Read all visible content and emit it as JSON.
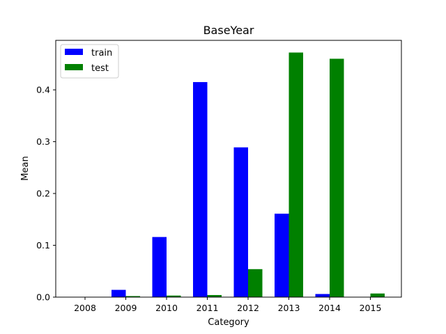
{
  "chart_data": {
    "type": "bar",
    "title": "BaseYear",
    "xlabel": "Category",
    "ylabel": "Mean",
    "categories": [
      "2008",
      "2009",
      "2010",
      "2011",
      "2012",
      "2013",
      "2014",
      "2015"
    ],
    "series": [
      {
        "name": "train",
        "color": "#0000ff",
        "values": [
          0.0,
          0.014,
          0.116,
          0.415,
          0.289,
          0.161,
          0.006,
          0.0
        ]
      },
      {
        "name": "test",
        "color": "#008000",
        "values": [
          0.0,
          0.002,
          0.003,
          0.004,
          0.054,
          0.472,
          0.46,
          0.007
        ]
      }
    ],
    "ylim": [
      0,
      0.4955
    ],
    "yticks": [
      "0.0",
      "0.1",
      "0.2",
      "0.3",
      "0.4"
    ],
    "grid": false,
    "legend_position": "top-left"
  }
}
